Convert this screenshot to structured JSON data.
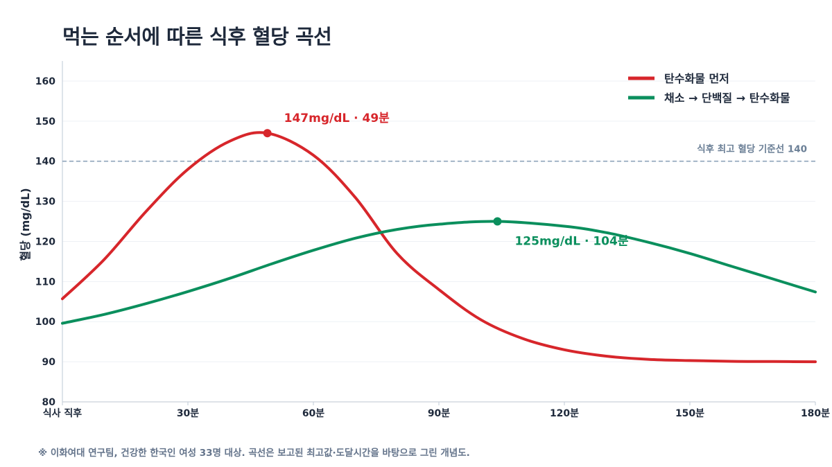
{
  "title": "먹는 순서에 따른 식후 혈당 곡선",
  "footnote": "※ 이화여대 연구팀, 건강한 한국인 여성 33명 대상. 곡선은 보고된 최고값·도달시간을 바탕으로 그린 개념도.",
  "colors": {
    "red": "#d7262b",
    "green": "#0b8f5d",
    "reference": "#8ea3ba",
    "grid": "#eef1f5",
    "axis": "#c9d1db",
    "text": "#1e293b"
  },
  "chart_data": {
    "type": "line",
    "ylabel": "혈당 (mg/dL)",
    "xlabel": "",
    "xlim": [
      0,
      180
    ],
    "ylim": [
      80,
      165
    ],
    "x_ticks": [
      {
        "value": 0,
        "label": "식사 직후"
      },
      {
        "value": 30,
        "label": "30분"
      },
      {
        "value": 60,
        "label": "60분"
      },
      {
        "value": 90,
        "label": "90분"
      },
      {
        "value": 120,
        "label": "120분"
      },
      {
        "value": 150,
        "label": "150분"
      },
      {
        "value": 180,
        "label": "180분"
      }
    ],
    "y_ticks": [
      80,
      90,
      100,
      110,
      120,
      130,
      140,
      150,
      160
    ],
    "grid": true,
    "legend_position": "top-right",
    "reference_line": {
      "y": 140,
      "label": "식후 최고 혈당 기준선 140"
    },
    "series": [
      {
        "name": "탄수화물 먼저",
        "color": "#d7262b",
        "x": [
          0,
          10,
          20,
          30,
          40,
          49,
          60,
          70,
          80,
          90,
          100,
          110,
          120,
          130,
          140,
          150,
          160,
          170,
          180
        ],
        "y": [
          105.7,
          115.5,
          127.5,
          138,
          145,
          147,
          141.5,
          131,
          117,
          108,
          100.5,
          95.8,
          93,
          91.4,
          90.6,
          90.3,
          90.1,
          90.05,
          90
        ],
        "peak": {
          "x": 49,
          "y": 147,
          "label": "147mg/dL · 49분"
        }
      },
      {
        "name": "채소 → 단백질 → 탄수화물",
        "color": "#0b8f5d",
        "x": [
          0,
          10,
          20,
          30,
          40,
          50,
          60,
          70,
          80,
          90,
          104,
          120,
          130,
          140,
          150,
          160,
          170,
          180
        ],
        "y": [
          99.6,
          101.8,
          104.5,
          107.5,
          110.8,
          114.4,
          117.8,
          120.8,
          123,
          124.3,
          125,
          123.8,
          122.2,
          119.8,
          117,
          113.8,
          110.6,
          107.4
        ],
        "peak": {
          "x": 104,
          "y": 125,
          "label": "125mg/dL · 104분"
        }
      }
    ]
  }
}
